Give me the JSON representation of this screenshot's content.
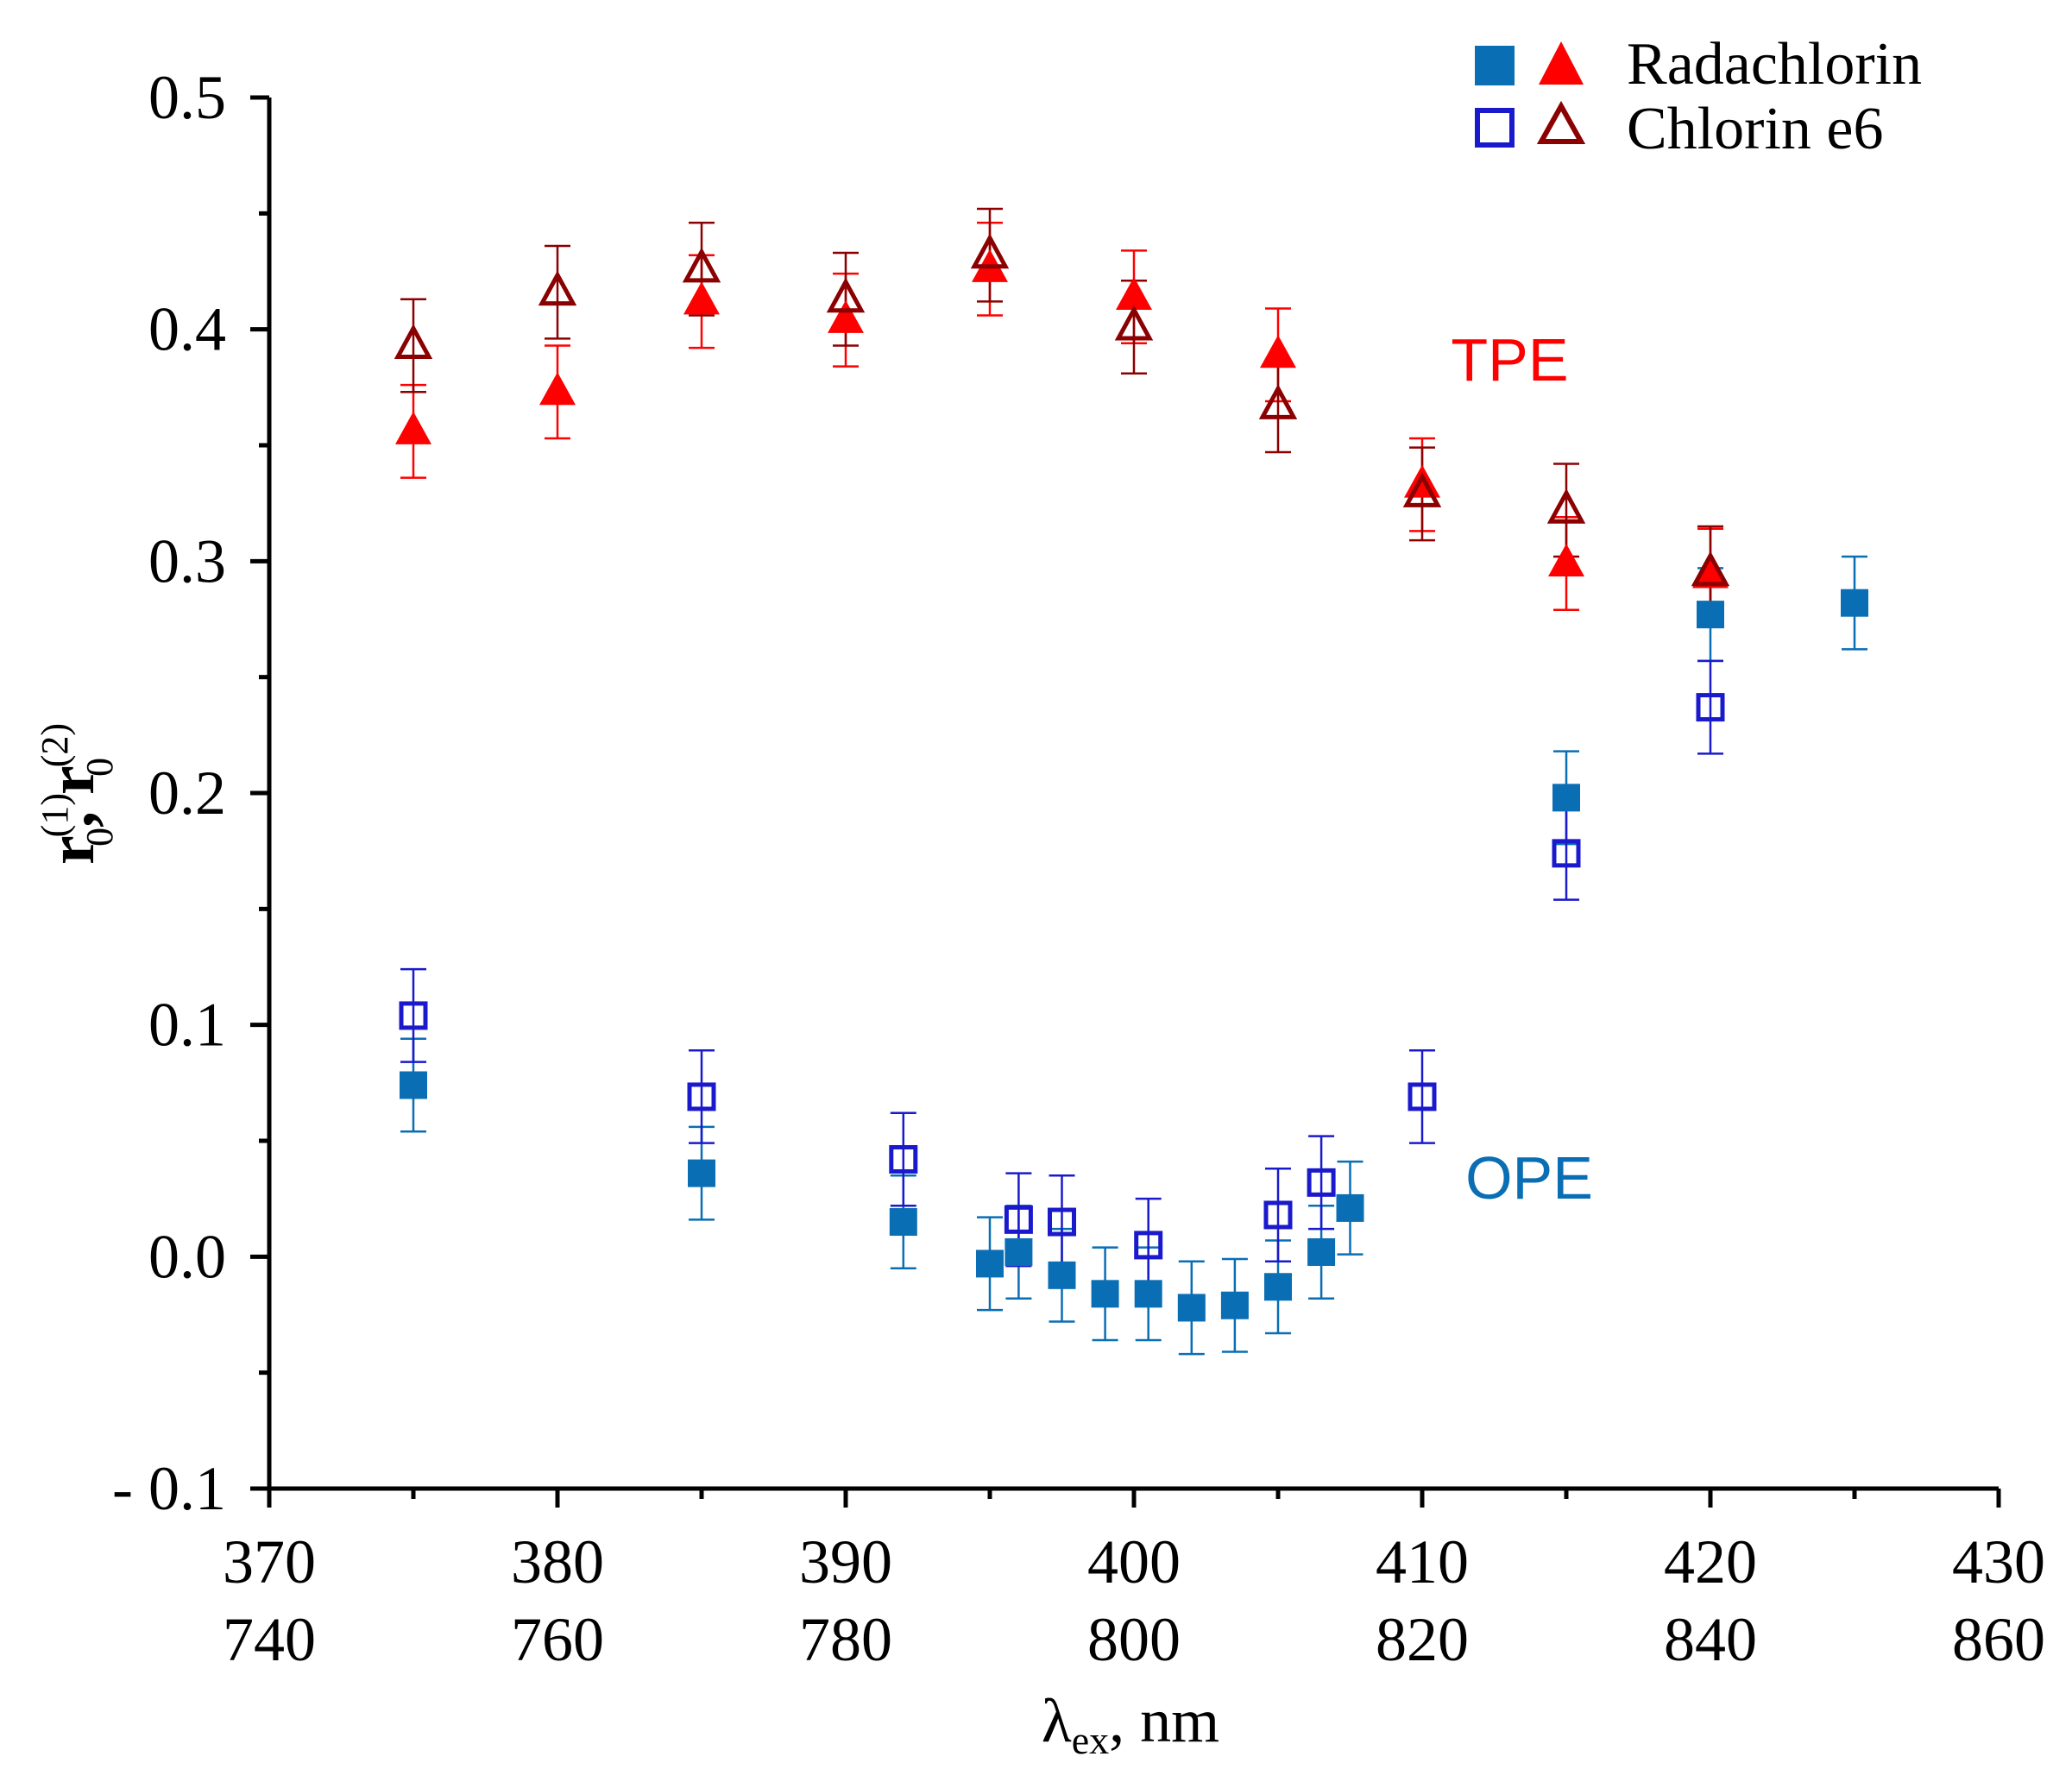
{
  "chart_data": {
    "type": "scatter",
    "title": "",
    "xlabel": {
      "main": "λ",
      "sub": "ex",
      "rest": ", nm"
    },
    "ylabel": {
      "r": "r",
      "sub": "0",
      "sup1": "(1)",
      "sep": ", ",
      "sup2": "(2)"
    },
    "xlim": [
      370,
      430
    ],
    "ylim": [
      -0.1,
      0.5
    ],
    "x_ticks": [
      370,
      380,
      390,
      400,
      410,
      420,
      430
    ],
    "x_tick_labels_top": [
      "370",
      "380",
      "390",
      "400",
      "410",
      "420",
      "430"
    ],
    "x_tick_labels_bottom": [
      "740",
      "760",
      "780",
      "800",
      "820",
      "840",
      "860"
    ],
    "y_ticks": [
      -0.1,
      0.0,
      0.1,
      0.2,
      0.3,
      0.4,
      0.5
    ],
    "y_tick_labels": [
      "- 0.1",
      "0.0",
      "0.1",
      "0.2",
      "0.3",
      "0.4",
      "0.5"
    ],
    "grid": false,
    "legend_position": "top-right",
    "legend": [
      {
        "label": "Radachlorin",
        "markers": [
          "filled-square",
          "filled-triangle"
        ]
      },
      {
        "label": "Chlorin e6",
        "markers": [
          "open-square",
          "open-triangle"
        ]
      }
    ],
    "annotations": [
      {
        "text": "TPE",
        "x": 411,
        "y": 0.378,
        "color": "#ff0000"
      },
      {
        "text": "OPE",
        "x": 411.5,
        "y": 0.025,
        "color": "#0a6eb4"
      }
    ],
    "series": [
      {
        "name": "Radachlorin OPE",
        "marker": "filled-square",
        "color": "#0a6eb4",
        "x": [
          375,
          385,
          392,
          395,
          396,
          397.5,
          399,
          400.5,
          402,
          403.5,
          405,
          406.5,
          407.5,
          415,
          420,
          425
        ],
        "y": [
          0.074,
          0.036,
          0.015,
          -0.003,
          0.002,
          -0.008,
          -0.016,
          -0.016,
          -0.022,
          -0.021,
          -0.013,
          0.002,
          0.021,
          0.198,
          0.277,
          0.282
        ],
        "err": 0.02
      },
      {
        "name": "Chlorin e6 OPE",
        "marker": "open-square",
        "color": "#1a1acc",
        "x": [
          375,
          385,
          392,
          396,
          397.5,
          400.5,
          405,
          406.5,
          410,
          415,
          420
        ],
        "y": [
          0.104,
          0.069,
          0.042,
          0.016,
          0.015,
          0.005,
          0.018,
          0.032,
          0.069,
          0.174,
          0.237
        ],
        "err": 0.02
      },
      {
        "name": "Radachlorin TPE",
        "marker": "filled-triangle",
        "color": "#ff0000",
        "x": [
          375,
          380,
          385,
          390,
          395,
          400,
          405,
          410,
          415,
          420
        ],
        "y": [
          0.356,
          0.373,
          0.412,
          0.404,
          0.426,
          0.414,
          0.389,
          0.333,
          0.299,
          0.294
        ],
        "err": 0.02
      },
      {
        "name": "Chlorin e6 TPE",
        "marker": "open-triangle",
        "color": "#8b0000",
        "x": [
          375,
          380,
          385,
          390,
          395,
          400,
          405,
          410,
          415,
          420
        ],
        "y": [
          0.393,
          0.416,
          0.426,
          0.413,
          0.432,
          0.401,
          0.367,
          0.329,
          0.322,
          0.295
        ],
        "err": 0.02
      }
    ]
  }
}
